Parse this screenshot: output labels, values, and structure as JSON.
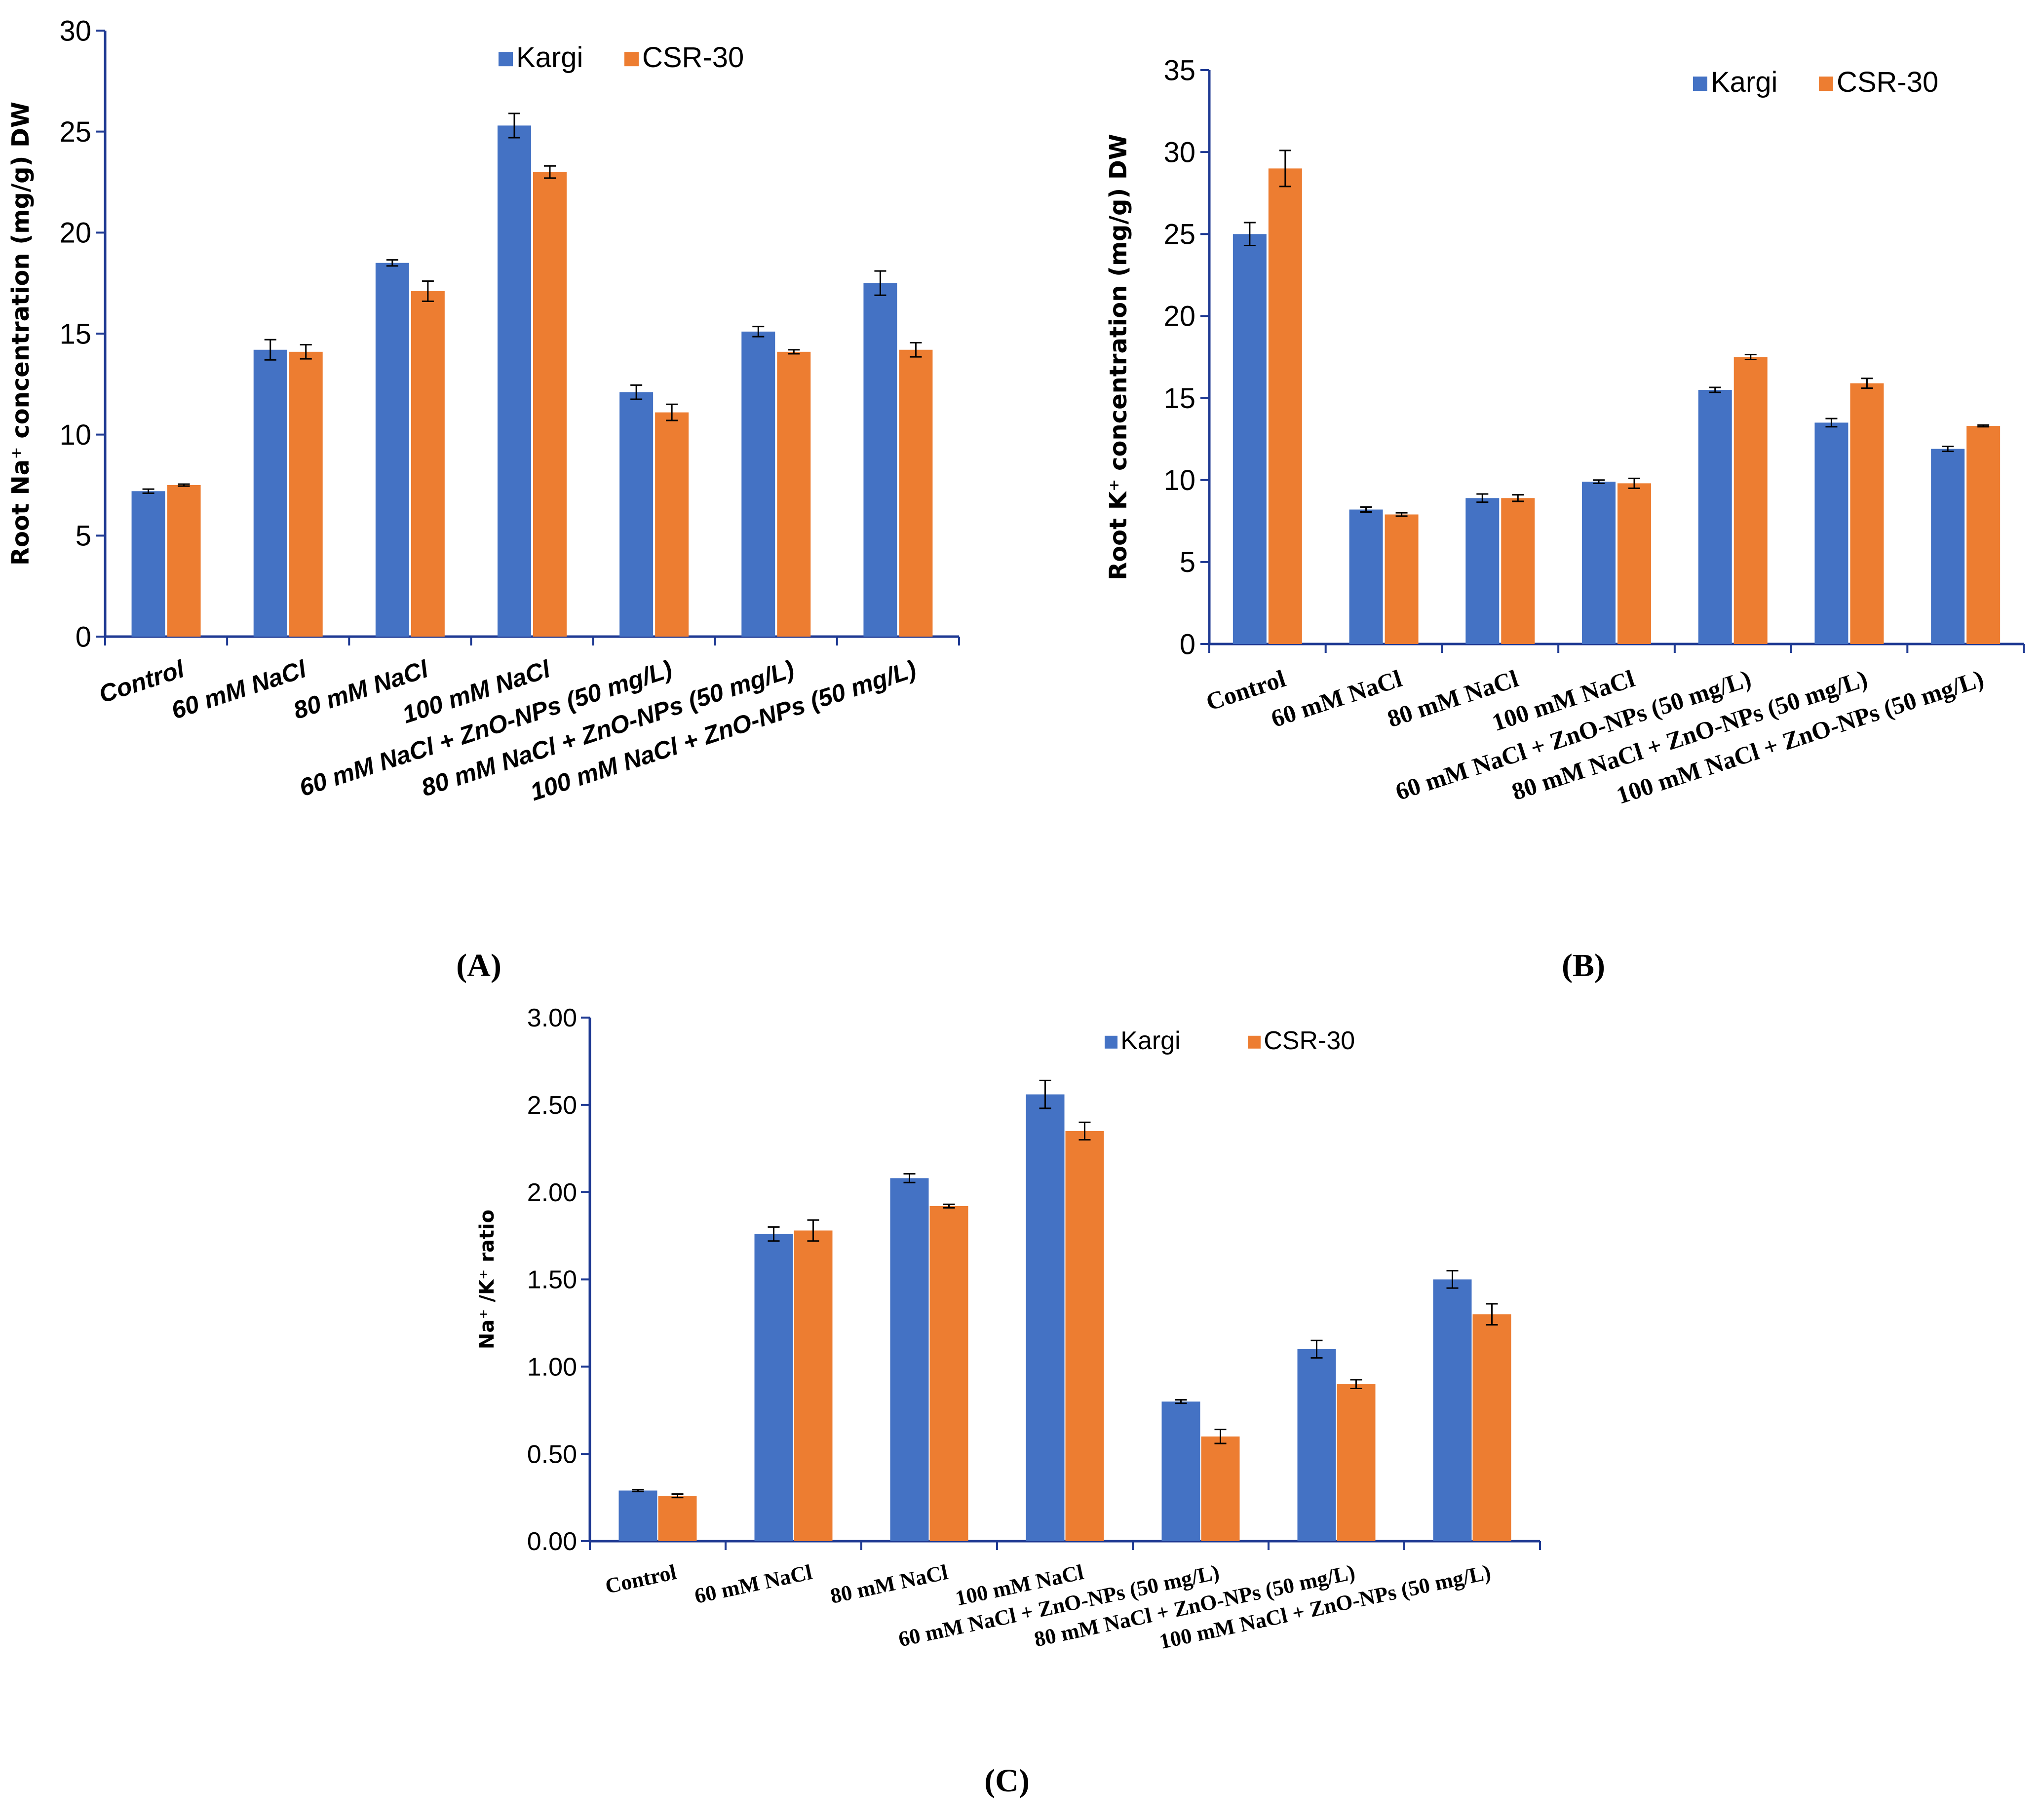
{
  "colors": {
    "kargi": "#4472C4",
    "csr30": "#ED7D31",
    "axis": "#1F3A93",
    "error": "#000000"
  },
  "legend": [
    "Kargi",
    "CSR-30"
  ],
  "categories": [
    "Control",
    "60 mM NaCl",
    "80 mM NaCl",
    "100 mM NaCl",
    "60 mM NaCl + ZnO-NPs (50 mg/L)",
    "80 mM NaCl + ZnO-NPs (50 mg/L)",
    "100 mM NaCl + ZnO-NPs (50 mg/L)"
  ],
  "chart_data": [
    {
      "panel": "(A)",
      "type": "bar",
      "ylabel": "Root Na⁺ concentration (mg/g) DW",
      "ylim": [
        0,
        30
      ],
      "yticks": [
        "0",
        "5",
        "10",
        "15",
        "20",
        "25",
        "30"
      ],
      "legend_position": "top-right",
      "series": [
        {
          "name": "Kargi",
          "values": [
            7.2,
            14.2,
            18.5,
            25.3,
            12.1,
            15.1,
            17.5
          ],
          "errors": [
            0.1,
            0.5,
            0.15,
            0.6,
            0.35,
            0.25,
            0.6
          ]
        },
        {
          "name": "CSR-30",
          "values": [
            7.5,
            14.1,
            17.1,
            23.0,
            11.1,
            14.1,
            14.2
          ],
          "errors": [
            0.05,
            0.35,
            0.5,
            0.3,
            0.4,
            0.1,
            0.35
          ]
        }
      ]
    },
    {
      "panel": "(B)",
      "type": "bar",
      "ylabel": "Root K⁺ concentration (mg/g) DW",
      "ylim": [
        0,
        35
      ],
      "yticks": [
        "0",
        "5",
        "10",
        "15",
        "20",
        "25",
        "30",
        "35"
      ],
      "legend_position": "top-right",
      "series": [
        {
          "name": "Kargi",
          "values": [
            25.0,
            8.2,
            8.9,
            9.9,
            15.5,
            13.5,
            11.9
          ],
          "errors": [
            0.7,
            0.15,
            0.25,
            0.1,
            0.15,
            0.25,
            0.15
          ]
        },
        {
          "name": "CSR-30",
          "values": [
            29.0,
            7.9,
            8.9,
            9.8,
            17.5,
            15.9,
            13.3
          ],
          "errors": [
            1.1,
            0.1,
            0.2,
            0.3,
            0.15,
            0.3,
            0.05
          ]
        }
      ]
    },
    {
      "panel": "(C)",
      "type": "bar",
      "ylabel": "Na⁺ /K⁺ ratio",
      "ylim": [
        0,
        3
      ],
      "yticks": [
        "0.00",
        "0.50",
        "1.00",
        "1.50",
        "2.00",
        "2.50",
        "3.00"
      ],
      "legend_position": "top-center",
      "series": [
        {
          "name": "Kargi",
          "values": [
            0.29,
            1.76,
            2.08,
            2.56,
            0.8,
            1.1,
            1.5
          ],
          "errors": [
            0.005,
            0.04,
            0.025,
            0.08,
            0.01,
            0.05,
            0.05
          ]
        },
        {
          "name": "CSR-30",
          "values": [
            0.26,
            1.78,
            1.92,
            2.35,
            0.6,
            0.9,
            1.3
          ],
          "errors": [
            0.01,
            0.06,
            0.01,
            0.05,
            0.04,
            0.025,
            0.06
          ]
        }
      ]
    }
  ]
}
